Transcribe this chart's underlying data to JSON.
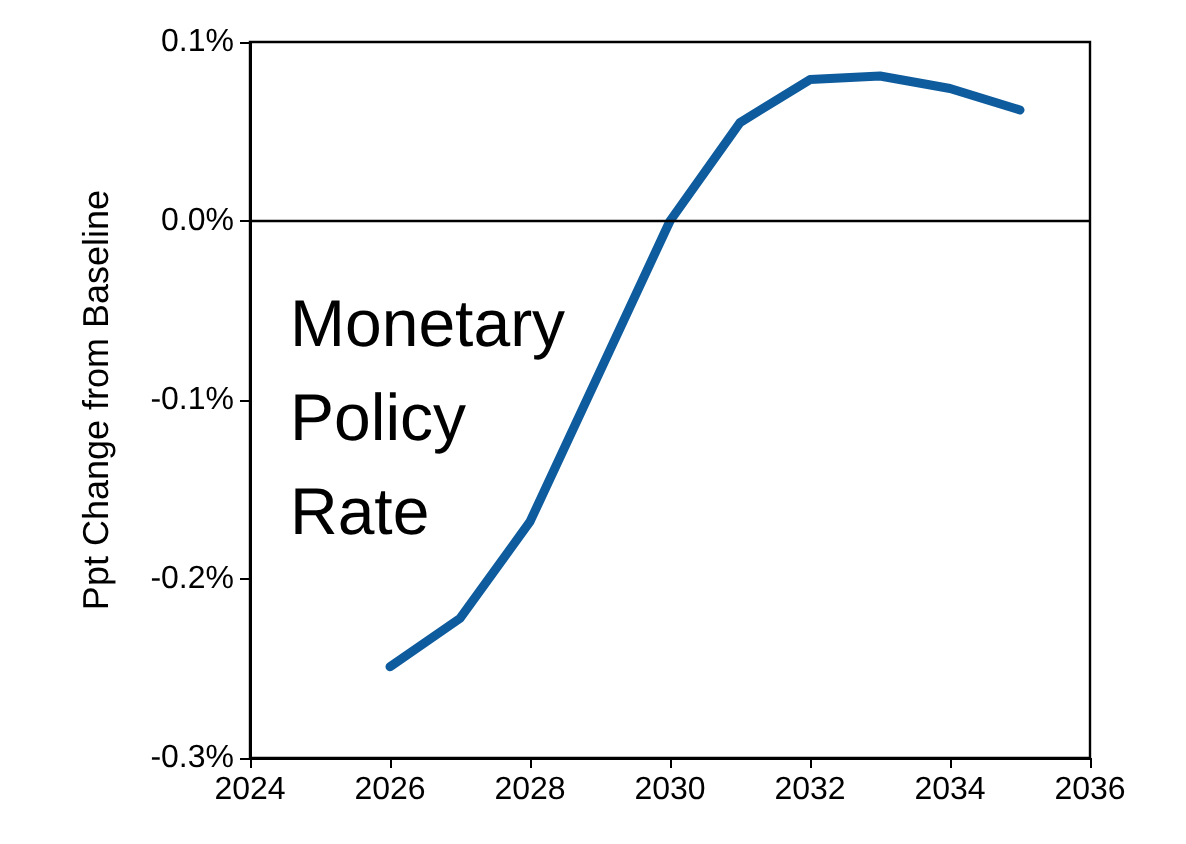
{
  "chart_data": {
    "type": "line",
    "ylabel": "Ppt Change from Baseline",
    "x": [
      2026,
      2027,
      2028,
      2029,
      2030,
      2031,
      2032,
      2033,
      2034,
      2035
    ],
    "series": [
      {
        "color": "#0e5c9e",
        "values": [
          -0.249,
          -0.222,
          -0.168,
          -0.084,
          0.0,
          0.055,
          0.079,
          0.081,
          0.074,
          0.062
        ]
      }
    ],
    "xlim": [
      2024,
      2036
    ],
    "xticks": [
      2024,
      2026,
      2028,
      2030,
      2032,
      2034,
      2036
    ],
    "ylim": [
      -0.3,
      0.1
    ],
    "yticks": [
      {
        "value": -0.3,
        "label": "-0.3%"
      },
      {
        "value": -0.2,
        "label": "-0.2%"
      },
      {
        "value": -0.1,
        "label": "-0.1%"
      },
      {
        "value": 0.0,
        "label": "0.0%"
      },
      {
        "value": 0.1,
        "label": "0.1%"
      }
    ],
    "ref_lines": [
      {
        "axis": "y",
        "value": 0,
        "color": "#000000"
      }
    ],
    "annotations": [
      "Monetary\nPolicy\nRate"
    ],
    "grid": false,
    "marker": "none",
    "line_style": "solid"
  }
}
